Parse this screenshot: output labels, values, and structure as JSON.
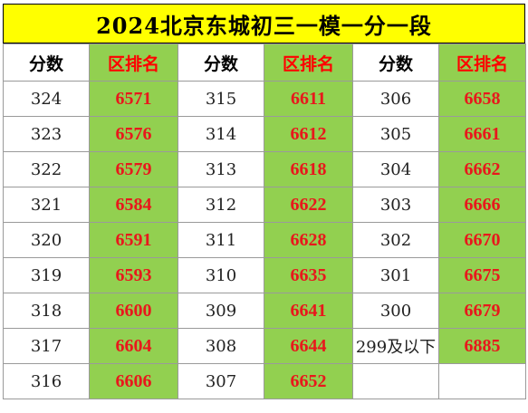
{
  "title": "2024北京东城初三一模一分一段",
  "headers": [
    "分数",
    "区排名",
    "分数",
    "区排名",
    "分数",
    "区排名"
  ],
  "rows": [
    [
      "324",
      "6571",
      "315",
      "6611",
      "306",
      "6658"
    ],
    [
      "323",
      "6576",
      "314",
      "6612",
      "305",
      "6661"
    ],
    [
      "322",
      "6579",
      "313",
      "6618",
      "304",
      "6662"
    ],
    [
      "321",
      "6584",
      "312",
      "6622",
      "303",
      "6666"
    ],
    [
      "320",
      "6591",
      "311",
      "6628",
      "302",
      "6670"
    ],
    [
      "319",
      "6593",
      "310",
      "6635",
      "301",
      "6675"
    ],
    [
      "318",
      "6600",
      "309",
      "6641",
      "300",
      "6679"
    ],
    [
      "317",
      "6604",
      "308",
      "6644",
      "299及以下",
      "6885"
    ],
    [
      "316",
      "6606",
      "307",
      "6652",
      "",
      ""
    ]
  ],
  "colors": {
    "title_bg": "#ffff00",
    "rank_bg": "#92d050",
    "rank_text": "#e8181c",
    "header_rank_text": "#ff0000"
  }
}
